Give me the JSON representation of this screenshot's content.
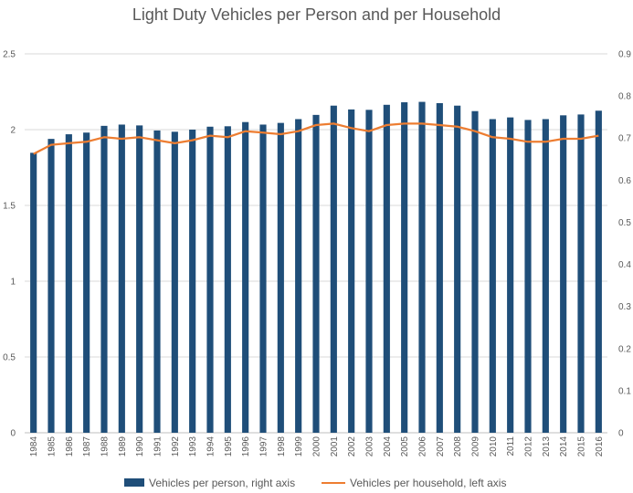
{
  "chart_data": {
    "type": "bar",
    "title": "Light Duty Vehicles per Person and per Household",
    "categories": [
      "1984",
      "1985",
      "1986",
      "1987",
      "1988",
      "1989",
      "1990",
      "1991",
      "1992",
      "1993",
      "1994",
      "1995",
      "1996",
      "1997",
      "1998",
      "1999",
      "2000",
      "2001",
      "2002",
      "2003",
      "2004",
      "2005",
      "2006",
      "2007",
      "2008",
      "2009",
      "2010",
      "2011",
      "2012",
      "2013",
      "2014",
      "2015",
      "2016"
    ],
    "left_axis": {
      "ylim": [
        0,
        2.5
      ],
      "ticks": [
        "0",
        "0.5",
        "1",
        "1.5",
        "2",
        "2.5"
      ]
    },
    "right_axis": {
      "ylim": [
        0,
        0.9
      ],
      "ticks": [
        "0",
        "0.1",
        "0.2",
        "0.3",
        "0.4",
        "0.5",
        "0.6",
        "0.7",
        "0.8",
        "0.9"
      ]
    },
    "grid": true,
    "legend_position": "bottom",
    "series": [
      {
        "name": "Vehicles per person, right axis",
        "type": "bar",
        "axis": "right",
        "color": "#1f4e79",
        "values": [
          0.665,
          0.698,
          0.709,
          0.713,
          0.729,
          0.732,
          0.73,
          0.718,
          0.715,
          0.72,
          0.727,
          0.728,
          0.738,
          0.732,
          0.736,
          0.745,
          0.755,
          0.777,
          0.768,
          0.767,
          0.779,
          0.785,
          0.786,
          0.783,
          0.777,
          0.764,
          0.745,
          0.749,
          0.743,
          0.745,
          0.754,
          0.756,
          0.765
        ]
      },
      {
        "name": "Vehicles per household, left axis",
        "type": "line",
        "axis": "left",
        "color": "#ed7d31",
        "values": [
          1.84,
          1.9,
          1.91,
          1.92,
          1.95,
          1.94,
          1.95,
          1.93,
          1.91,
          1.93,
          1.96,
          1.95,
          1.99,
          1.98,
          1.97,
          1.99,
          2.03,
          2.04,
          2.01,
          1.99,
          2.03,
          2.04,
          2.04,
          2.03,
          2.02,
          1.99,
          1.95,
          1.94,
          1.92,
          1.92,
          1.94,
          1.94,
          1.96
        ]
      }
    ]
  }
}
